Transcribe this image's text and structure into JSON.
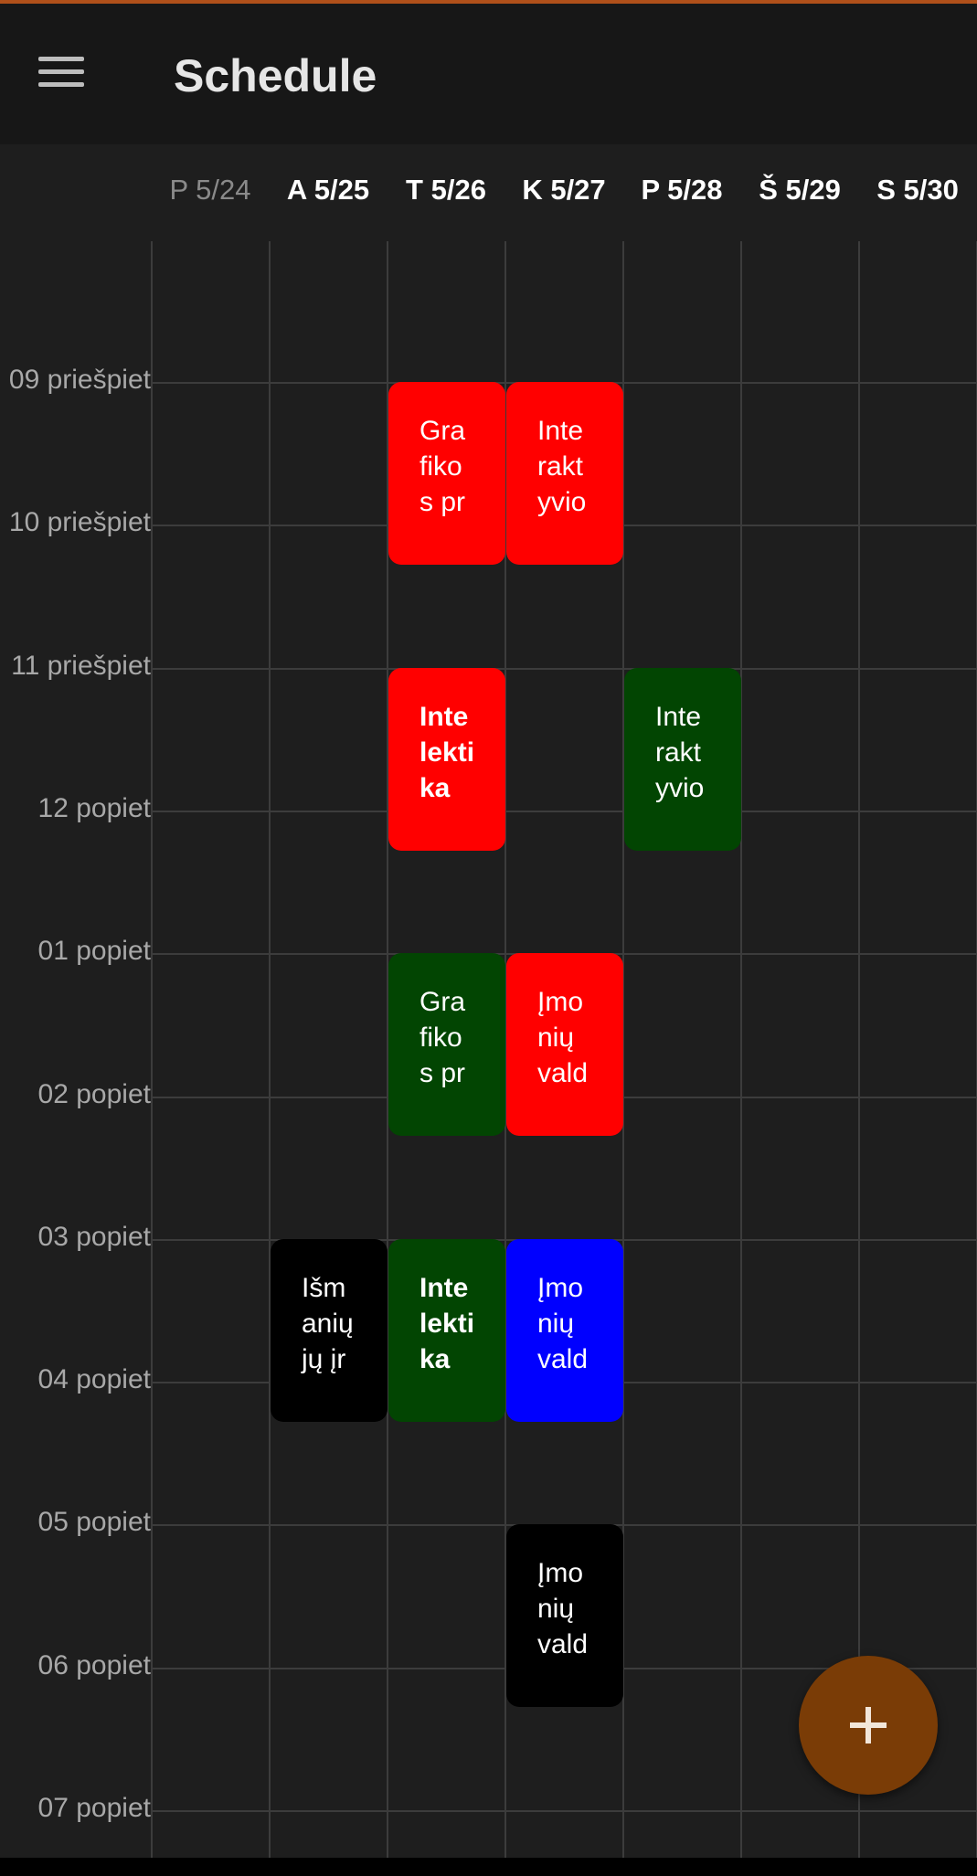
{
  "app": {
    "title": "Schedule",
    "accent_color": "#7a3c06",
    "menu_icon": "hamburger-menu-icon",
    "fab_icon": "plus-icon"
  },
  "days": [
    {
      "label": "P 5/24",
      "past": true
    },
    {
      "label": "A 5/25",
      "past": false
    },
    {
      "label": "T 5/26",
      "past": false
    },
    {
      "label": "K 5/27",
      "past": false
    },
    {
      "label": "P 5/28",
      "past": false
    },
    {
      "label": "Š 5/29",
      "past": false
    },
    {
      "label": "S 5/30",
      "past": false
    }
  ],
  "times": [
    "09 priešpiet",
    "10 priešpiet",
    "11 priešpiet",
    "12 popiet",
    "01 popiet",
    "02 popiet",
    "03 popiet",
    "04 popiet",
    "05 popiet",
    "06 popiet",
    "07 popiet"
  ],
  "events": [
    {
      "title": "Gra\nfiko\ns pr",
      "day": "T 5/26",
      "start": "09 priešpiet",
      "color": "#ff0000",
      "bold": false
    },
    {
      "title": "Inte\nrakt\nyvio",
      "day": "K 5/27",
      "start": "09 priešpiet",
      "color": "#ff0000",
      "bold": false
    },
    {
      "title": "Inte\nlekti\nka",
      "day": "T 5/26",
      "start": "11 priešpiet",
      "color": "#ff0000",
      "bold": true
    },
    {
      "title": "Inte\nrakt\nyvio",
      "day": "P 5/28",
      "start": "11 priešpiet",
      "color": "#024502",
      "bold": false
    },
    {
      "title": "Gra\nfiko\ns pr",
      "day": "T 5/26",
      "start": "01 popiet",
      "color": "#024502",
      "bold": false
    },
    {
      "title": "Įmo\nnių\nvald",
      "day": "K 5/27",
      "start": "01 popiet",
      "color": "#ff0000",
      "bold": false
    },
    {
      "title": "Išm\nanių\njų įr",
      "day": "A 5/25",
      "start": "03 popiet",
      "color": "#000000",
      "bold": false
    },
    {
      "title": "Inte\nlekti\nka",
      "day": "T 5/26",
      "start": "03 popiet",
      "color": "#024502",
      "bold": true
    },
    {
      "title": "Įmo\nnių\nvald",
      "day": "K 5/27",
      "start": "03 popiet",
      "color": "#0000ff",
      "bold": false
    },
    {
      "title": "Įmo\nnių\nvald",
      "day": "K 5/27",
      "start": "05 popiet",
      "color": "#000000",
      "bold": false
    }
  ]
}
